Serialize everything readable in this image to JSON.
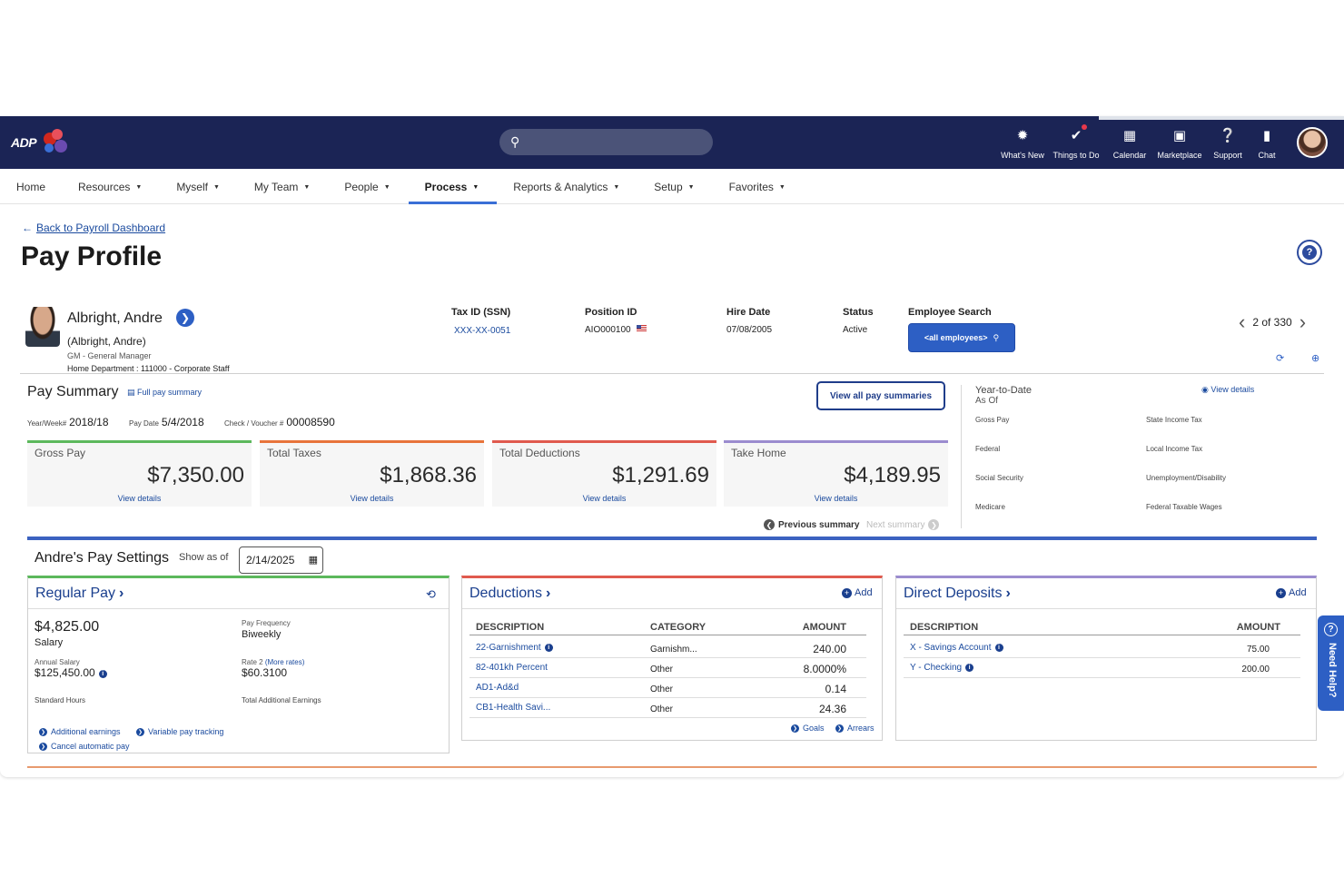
{
  "topbar": {
    "logo_adp": "ADP",
    "icons": [
      {
        "name": "whats-new",
        "label": "What's New",
        "icon": "lightbulb-icon",
        "glyph": "💡"
      },
      {
        "name": "things-to-do",
        "label": "Things to Do",
        "icon": "check-circle-icon",
        "glyph": "✔"
      },
      {
        "name": "calendar",
        "label": "Calendar",
        "icon": "calendar-icon",
        "glyph": "▦"
      },
      {
        "name": "marketplace",
        "label": "Marketplace",
        "icon": "bag-icon",
        "glyph": "▣"
      },
      {
        "name": "support",
        "label": "Support",
        "icon": "question-icon",
        "glyph": "?"
      },
      {
        "name": "chat",
        "label": "Chat",
        "icon": "chat-icon",
        "glyph": "▬"
      }
    ]
  },
  "nav": [
    {
      "label": "Home",
      "caret": false,
      "active": false
    },
    {
      "label": "Resources",
      "caret": true,
      "active": false
    },
    {
      "label": "Myself",
      "caret": true,
      "active": false
    },
    {
      "label": "My Team",
      "caret": true,
      "active": false
    },
    {
      "label": "People",
      "caret": true,
      "active": false
    },
    {
      "label": "Process",
      "caret": true,
      "active": true
    },
    {
      "label": "Reports & Analytics",
      "caret": true,
      "active": false
    },
    {
      "label": "Setup",
      "caret": true,
      "active": false
    },
    {
      "label": "Favorites",
      "caret": true,
      "active": false
    }
  ],
  "page": {
    "back_label": "Back to Payroll Dashboard",
    "title": "Pay Profile"
  },
  "employee": {
    "name": "Albright, Andre",
    "alias": "(Albright, Andre)",
    "role": "GM - General Manager",
    "department": "Home Department : 111000 - Corporate Staff",
    "tax_id_label": "Tax ID (SSN)",
    "tax_id": "XXX-XX-0051",
    "position_label": "Position ID",
    "position": "AIO000100",
    "hire_label": "Hire Date",
    "hire_date": "07/08/2005",
    "status_label": "Status",
    "status": "Active",
    "search_label": "Employee Search",
    "search_button": "<all employees>",
    "pager": "2 of 330"
  },
  "pay_summary": {
    "title": "Pay Summary",
    "full_link": "Full pay summary",
    "view_all": "View all pay summaries",
    "year_week_label": "Year/Week#",
    "year_week": "2018/18",
    "pay_date_label": "Pay Date",
    "pay_date": "5/4/2018",
    "check_label": "Check / Voucher #",
    "check": "00008590",
    "cards": [
      {
        "label": "Gross Pay",
        "amount": "$7,350.00",
        "details": "View details",
        "color": "#5cb85c"
      },
      {
        "label": "Total Taxes",
        "amount": "$1,868.36",
        "details": "View details",
        "color": "#e8743b"
      },
      {
        "label": "Total Deductions",
        "amount": "$1,291.69",
        "details": "View details",
        "color": "#e05a4e"
      },
      {
        "label": "Take Home",
        "amount": "$4,189.95",
        "details": "View details",
        "color": "#9b8ccf"
      }
    ],
    "previous": "Previous summary",
    "next": "Next summary"
  },
  "ytd": {
    "title": "Year-to-Date",
    "as_of": "As Of",
    "view_details": "View details",
    "left": [
      "Gross Pay",
      "Federal",
      "Social Security",
      "Medicare"
    ],
    "right": [
      "State Income Tax",
      "Local Income Tax",
      "Unemployment/Disability",
      "Federal Taxable Wages"
    ]
  },
  "settings": {
    "title": "Andre's Pay Settings",
    "show_as_of": "Show as of",
    "date": "2/14/2025"
  },
  "regular_pay": {
    "title": "Regular Pay",
    "salary_amount": "$4,825.00",
    "salary_label": "Salary",
    "annual_label": "Annual Salary",
    "annual_value": "$125,450.00",
    "freq_label": "Pay Frequency",
    "freq_value": "Biweekly",
    "rate_label": "Rate 2",
    "more_rates": "(More rates)",
    "rate_value": "$60.3100",
    "std_hours": "Standard Hours",
    "total_additional": "Total Additional Earnings",
    "links": [
      "Additional earnings",
      "Variable pay tracking",
      "Cancel automatic pay"
    ]
  },
  "deductions": {
    "title": "Deductions",
    "add": "Add",
    "headers": [
      "DESCRIPTION",
      "CATEGORY",
      "AMOUNT"
    ],
    "rows": [
      {
        "desc": "22-Garnishment",
        "info": true,
        "category": "Garnishm...",
        "amount": "240.00"
      },
      {
        "desc": "82-401kh Percent",
        "info": false,
        "category": "Other",
        "amount": "8.0000%"
      },
      {
        "desc": "AD1-Ad&d",
        "info": false,
        "category": "Other",
        "amount": "0.14"
      },
      {
        "desc": "CB1-Health Savi...",
        "info": false,
        "category": "Other",
        "amount": "24.36"
      }
    ],
    "goals": "Goals",
    "arrears": "Arrears"
  },
  "direct_deposits": {
    "title": "Direct Deposits",
    "add": "Add",
    "headers": [
      "DESCRIPTION",
      "AMOUNT"
    ],
    "rows": [
      {
        "desc": "X - Savings Account",
        "amount": "75.00"
      },
      {
        "desc": "Y - Checking",
        "amount": "200.00"
      }
    ]
  },
  "need_help": "Need Help?"
}
